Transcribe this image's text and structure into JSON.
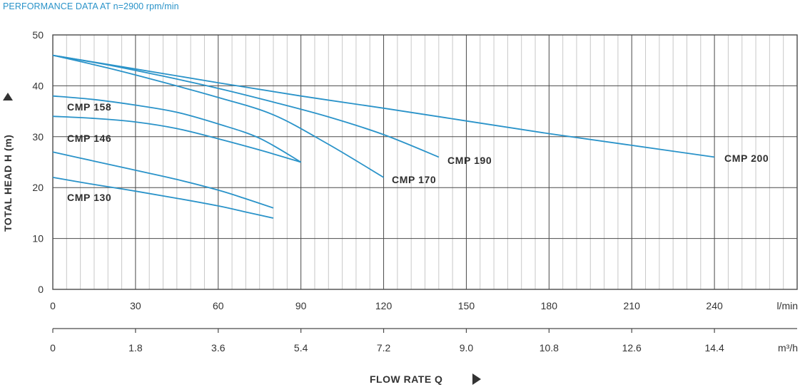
{
  "header": "PERFORMANCE DATA AT n=2900 rpm/min",
  "colors": {
    "curve": "#2a93c9",
    "major_grid": "#4a4a4a",
    "minor_grid": "#c8c8c8",
    "text": "#333333"
  },
  "chart_data": {
    "type": "line",
    "title": "PERFORMANCE DATA AT n=2900 rpm/min",
    "ylabel": "TOTAL HEAD H (m)",
    "xlabel": "FLOW RATE Q",
    "ylim": [
      0,
      50
    ],
    "yticks": [
      "0",
      "10",
      "20",
      "30",
      "40",
      "50"
    ],
    "xlim_lmin": [
      0,
      270
    ],
    "x_unit_lmin": "l/min",
    "xticks_lmin": [
      "0",
      "30",
      "60",
      "90",
      "120",
      "150",
      "180",
      "210",
      "240"
    ],
    "x_unit_m3h": "m³/h",
    "xticks_m3h": [
      "0",
      "1.8",
      "3.6",
      "5.4",
      "7.2",
      "9.0",
      "10.8",
      "12.6",
      "14.4"
    ],
    "grid": true,
    "series": [
      {
        "name": "CMP 200",
        "x": [
          0,
          30,
          60,
          90,
          120,
          150,
          180,
          210,
          240
        ],
        "y": [
          46,
          43.3,
          40.6,
          38,
          35.6,
          33.1,
          30.6,
          28.3,
          26
        ]
      },
      {
        "name": "CMP 190",
        "x": [
          0,
          20,
          40,
          60,
          80,
          100,
          120,
          140
        ],
        "y": [
          46,
          44.1,
          41.9,
          39.5,
          36.8,
          33.9,
          30.4,
          26
        ]
      },
      {
        "name": "CMP 170",
        "x": [
          0,
          20,
          40,
          60,
          80,
          100,
          120
        ],
        "y": [
          46,
          43.5,
          40.7,
          37.7,
          34.3,
          28.5,
          22
        ]
      },
      {
        "name": "CMP 158",
        "x": [
          0,
          15,
          30,
          45,
          60,
          75,
          90
        ],
        "y": [
          38,
          37.3,
          36.2,
          34.8,
          32.5,
          29.7,
          25
        ]
      },
      {
        "name": "CMP 146",
        "x": [
          0,
          15,
          30,
          45,
          60,
          75,
          90
        ],
        "y": [
          34,
          33.6,
          32.9,
          31.6,
          29.6,
          27.4,
          25
        ]
      },
      {
        "name": "CMP 130 (upper)",
        "x": [
          0,
          15,
          30,
          45,
          60,
          70,
          80
        ],
        "y": [
          27,
          25.2,
          23.4,
          21.6,
          19.5,
          17.8,
          16
        ]
      },
      {
        "name": "CMP 130",
        "x": [
          0,
          15,
          30,
          45,
          60,
          70,
          80
        ],
        "y": [
          22,
          20.6,
          19.3,
          17.9,
          16.4,
          15.2,
          14
        ]
      }
    ],
    "labels": [
      {
        "text": "CMP 200"
      },
      {
        "text": "CMP 190"
      },
      {
        "text": "CMP 170"
      },
      {
        "text": "CMP 158"
      },
      {
        "text": "CMP 146"
      },
      {
        "text": "CMP 130"
      }
    ]
  }
}
